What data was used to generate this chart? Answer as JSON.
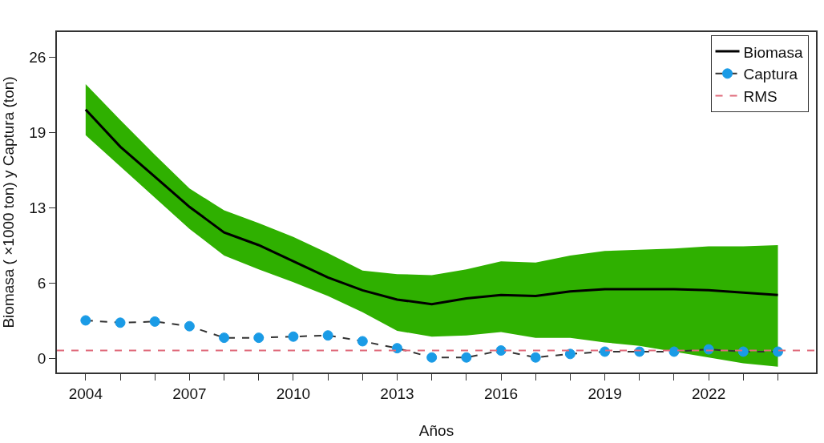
{
  "chart_data": {
    "type": "line",
    "xlabel": "Años",
    "ylabel": "Biomasa ( ×1000 ton) y Captura (ton)",
    "x": [
      2004,
      2005,
      2006,
      2007,
      2008,
      2009,
      2010,
      2011,
      2012,
      2013,
      2014,
      2015,
      2016,
      2017,
      2018,
      2019,
      2020,
      2021,
      2022,
      2023,
      2024
    ],
    "series": [
      {
        "name": "Biomasa",
        "color": "#000000",
        "line_style": "solid",
        "marker": "none",
        "values": [
          21.5,
          18.3,
          15.7,
          13.1,
          10.9,
          9.8,
          8.4,
          7.0,
          5.9,
          5.1,
          4.7,
          5.2,
          5.5,
          5.4,
          5.8,
          6.0,
          6.0,
          6.0,
          5.9,
          5.7,
          5.5
        ],
        "lower": [
          19.3,
          16.6,
          13.9,
          11.2,
          8.9,
          7.7,
          6.6,
          5.4,
          4.0,
          2.4,
          1.9,
          2.0,
          2.3,
          1.8,
          1.8,
          1.4,
          1.1,
          0.6,
          0.1,
          -0.4,
          -0.7
        ],
        "upper": [
          23.7,
          20.6,
          17.6,
          14.7,
          12.8,
          11.7,
          10.5,
          9.1,
          7.6,
          7.3,
          7.2,
          7.7,
          8.4,
          8.3,
          8.9,
          9.3,
          9.4,
          9.5,
          9.7,
          9.7,
          9.8
        ]
      },
      {
        "name": "Captura",
        "color": "#1a9be6",
        "line_style": "dashed",
        "marker": "circle",
        "values": [
          3.3,
          3.1,
          3.2,
          2.8,
          1.8,
          1.8,
          1.9,
          2.0,
          1.5,
          0.9,
          0.1,
          0.1,
          0.7,
          0.1,
          0.4,
          0.6,
          0.6,
          0.6,
          0.8,
          0.6,
          0.6
        ]
      }
    ],
    "ref_lines": [
      {
        "axis": "y",
        "value": 0.7,
        "label": "RMS",
        "color": "#e06a7a",
        "line_style": "dashed"
      }
    ],
    "xlim": [
      2003.17,
      2025.1
    ],
    "ylim": [
      -1.2,
      28.2
    ],
    "xticks": [
      2004,
      {
        "value": 2005,
        "label": null
      },
      {
        "value": 2006,
        "label": null
      },
      2007,
      {
        "value": 2008,
        "label": null
      },
      {
        "value": 2009,
        "label": null
      },
      2010,
      {
        "value": 2011,
        "label": null
      },
      {
        "value": 2012,
        "label": null
      },
      2013,
      {
        "value": 2014,
        "label": null
      },
      {
        "value": 2015,
        "label": null
      },
      2016,
      {
        "value": 2017,
        "label": null
      },
      {
        "value": 2018,
        "label": null
      },
      2019,
      {
        "value": 2020,
        "label": null
      },
      {
        "value": 2021,
        "label": null
      },
      2022,
      {
        "value": 2023,
        "label": null
      },
      {
        "value": 2024,
        "label": null
      }
    ],
    "yticks": [
      0,
      {
        "value": 6.5,
        "label": "6"
      },
      13,
      {
        "value": 19.5,
        "label": "19"
      },
      26
    ],
    "legend": "top right"
  }
}
